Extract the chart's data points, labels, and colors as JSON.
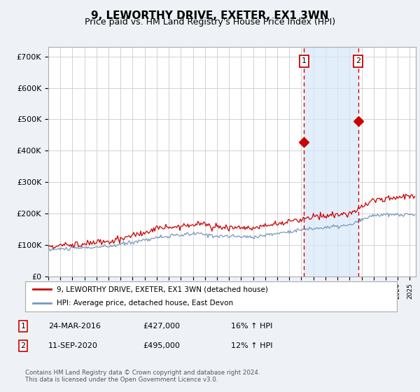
{
  "title": "9, LEWORTHY DRIVE, EXETER, EX1 3WN",
  "subtitle": "Price paid vs. HM Land Registry's House Price Index (HPI)",
  "title_fontsize": 11,
  "subtitle_fontsize": 9,
  "ylabel_ticks": [
    "£0",
    "£100K",
    "£200K",
    "£300K",
    "£400K",
    "£500K",
    "£600K",
    "£700K"
  ],
  "ytick_values": [
    0,
    100000,
    200000,
    300000,
    400000,
    500000,
    600000,
    700000
  ],
  "ylim": [
    0,
    730000
  ],
  "xlim_start": 1995.0,
  "xlim_end": 2025.5,
  "red_line_color": "#cc0000",
  "blue_line_color": "#7799bb",
  "blue_fill_color": "#dce9f5",
  "grid_color": "#cccccc",
  "background_color": "#eef2f7",
  "plot_bg_color": "#ffffff",
  "sale1_x": 2016.23,
  "sale2_x": 2020.71,
  "annotation_dashed_color": "#cc0000",
  "shade_color": "#d6e8f8",
  "legend_label_red": "9, LEWORTHY DRIVE, EXETER, EX1 3WN (detached house)",
  "legend_label_blue": "HPI: Average price, detached house, East Devon",
  "table_entries": [
    {
      "num": "1",
      "date": "24-MAR-2016",
      "price": "£427,000",
      "change": "16% ↑ HPI"
    },
    {
      "num": "2",
      "date": "11-SEP-2020",
      "price": "£495,000",
      "change": "12% ↑ HPI"
    }
  ],
  "footer_text": "Contains HM Land Registry data © Crown copyright and database right 2024.\nThis data is licensed under the Open Government Licence v3.0."
}
